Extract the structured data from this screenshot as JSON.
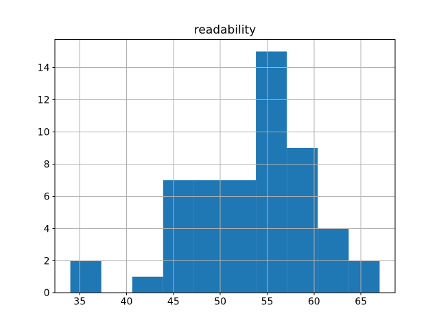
{
  "figure": {
    "background": "#ffffff"
  },
  "chart_data": {
    "type": "bar",
    "subtype": "histogram",
    "title": "readability",
    "xlabel": "",
    "ylabel": "",
    "bin_edges": [
      34.0,
      37.3,
      40.6,
      43.9,
      47.2,
      50.5,
      53.8,
      57.1,
      60.4,
      63.7,
      67.0
    ],
    "counts": [
      2,
      0,
      1,
      7,
      7,
      7,
      15,
      9,
      4,
      2
    ],
    "xlim": [
      32.35,
      68.65
    ],
    "ylim": [
      0,
      15.75
    ],
    "xticks": [
      35,
      40,
      45,
      50,
      55,
      60,
      65
    ],
    "yticks": [
      0,
      2,
      4,
      6,
      8,
      10,
      12,
      14
    ],
    "grid": true,
    "grid_position": "above-bars",
    "legend": "none",
    "colors": {
      "bar": "#1f77b4",
      "grid": "#b0b0b0",
      "spine": "#000000",
      "tick": "#000000",
      "text": "#000000",
      "background": "#ffffff"
    }
  }
}
